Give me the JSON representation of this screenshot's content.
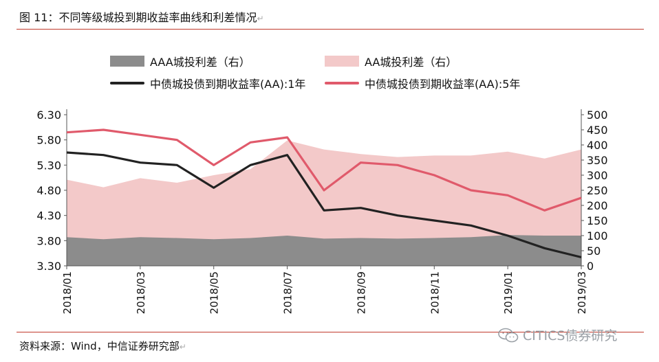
{
  "header": {
    "title": "图 11：不同等级城投到期收益率曲线和利差情况",
    "source": "资料来源：Wind，中信证券研究部",
    "return_mark": "↵",
    "watermark": "CITICS债券研究"
  },
  "colors": {
    "aaa_spread": "#8c8c8c",
    "aa_spread": "#f3c9c9",
    "aa_1y": "#222222",
    "aa_5y": "#e05a6b",
    "rule": "#c0392b"
  },
  "chart_data": {
    "type": "area",
    "title": "不同等级城投到期收益率曲线和利差情况",
    "xlabel": "",
    "ylabel": "",
    "x": [
      "2018/01",
      "2018/02",
      "2018/03",
      "2018/04",
      "2018/05",
      "2018/06",
      "2018/07",
      "2018/08",
      "2018/09",
      "2018/10",
      "2018/11",
      "2018/12",
      "2019/01",
      "2019/02",
      "2019/03"
    ],
    "x_tick_labels": [
      "2018/01",
      "2018/03",
      "2018/05",
      "2018/07",
      "2018/09",
      "2018/11",
      "2019/01",
      "2019/03"
    ],
    "ylim_left": [
      3.3,
      6.3
    ],
    "yticks_left": [
      "6.30",
      "5.80",
      "5.30",
      "4.80",
      "4.30",
      "3.80",
      "3.30"
    ],
    "ylim_right": [
      0,
      500
    ],
    "yticks_right": [
      "500",
      "450",
      "400",
      "350",
      "300",
      "250",
      "200",
      "150",
      "100",
      "50",
      "0"
    ],
    "legend": [
      "AAA城投利差（右）",
      "AA城投利差（右）",
      "中债城投债到期收益率(AA):1年",
      "中债城投债到期收益率(AA):5年"
    ],
    "series": [
      {
        "name": "AAA城投利差（右）",
        "axis": "right",
        "kind": "area",
        "values": [
          95,
          88,
          95,
          92,
          88,
          92,
          100,
          90,
          92,
          90,
          92,
          95,
          102,
          100,
          100
        ]
      },
      {
        "name": "AA城投利差（右）",
        "axis": "right",
        "kind": "area",
        "values": [
          285,
          260,
          290,
          275,
          300,
          320,
          415,
          385,
          370,
          360,
          365,
          365,
          378,
          355,
          385
        ]
      },
      {
        "name": "中债城投债到期收益率(AA):1年",
        "axis": "left",
        "kind": "line",
        "values": [
          5.55,
          5.5,
          5.35,
          5.3,
          4.85,
          5.3,
          5.5,
          4.4,
          4.45,
          4.3,
          4.2,
          4.1,
          3.9,
          3.65,
          3.47
        ]
      },
      {
        "name": "中债城投债到期收益率(AA):5年",
        "axis": "left",
        "kind": "line",
        "values": [
          5.95,
          6.0,
          5.9,
          5.8,
          5.3,
          5.75,
          5.85,
          4.8,
          5.35,
          5.3,
          5.1,
          4.8,
          4.7,
          4.4,
          4.65
        ]
      }
    ]
  }
}
